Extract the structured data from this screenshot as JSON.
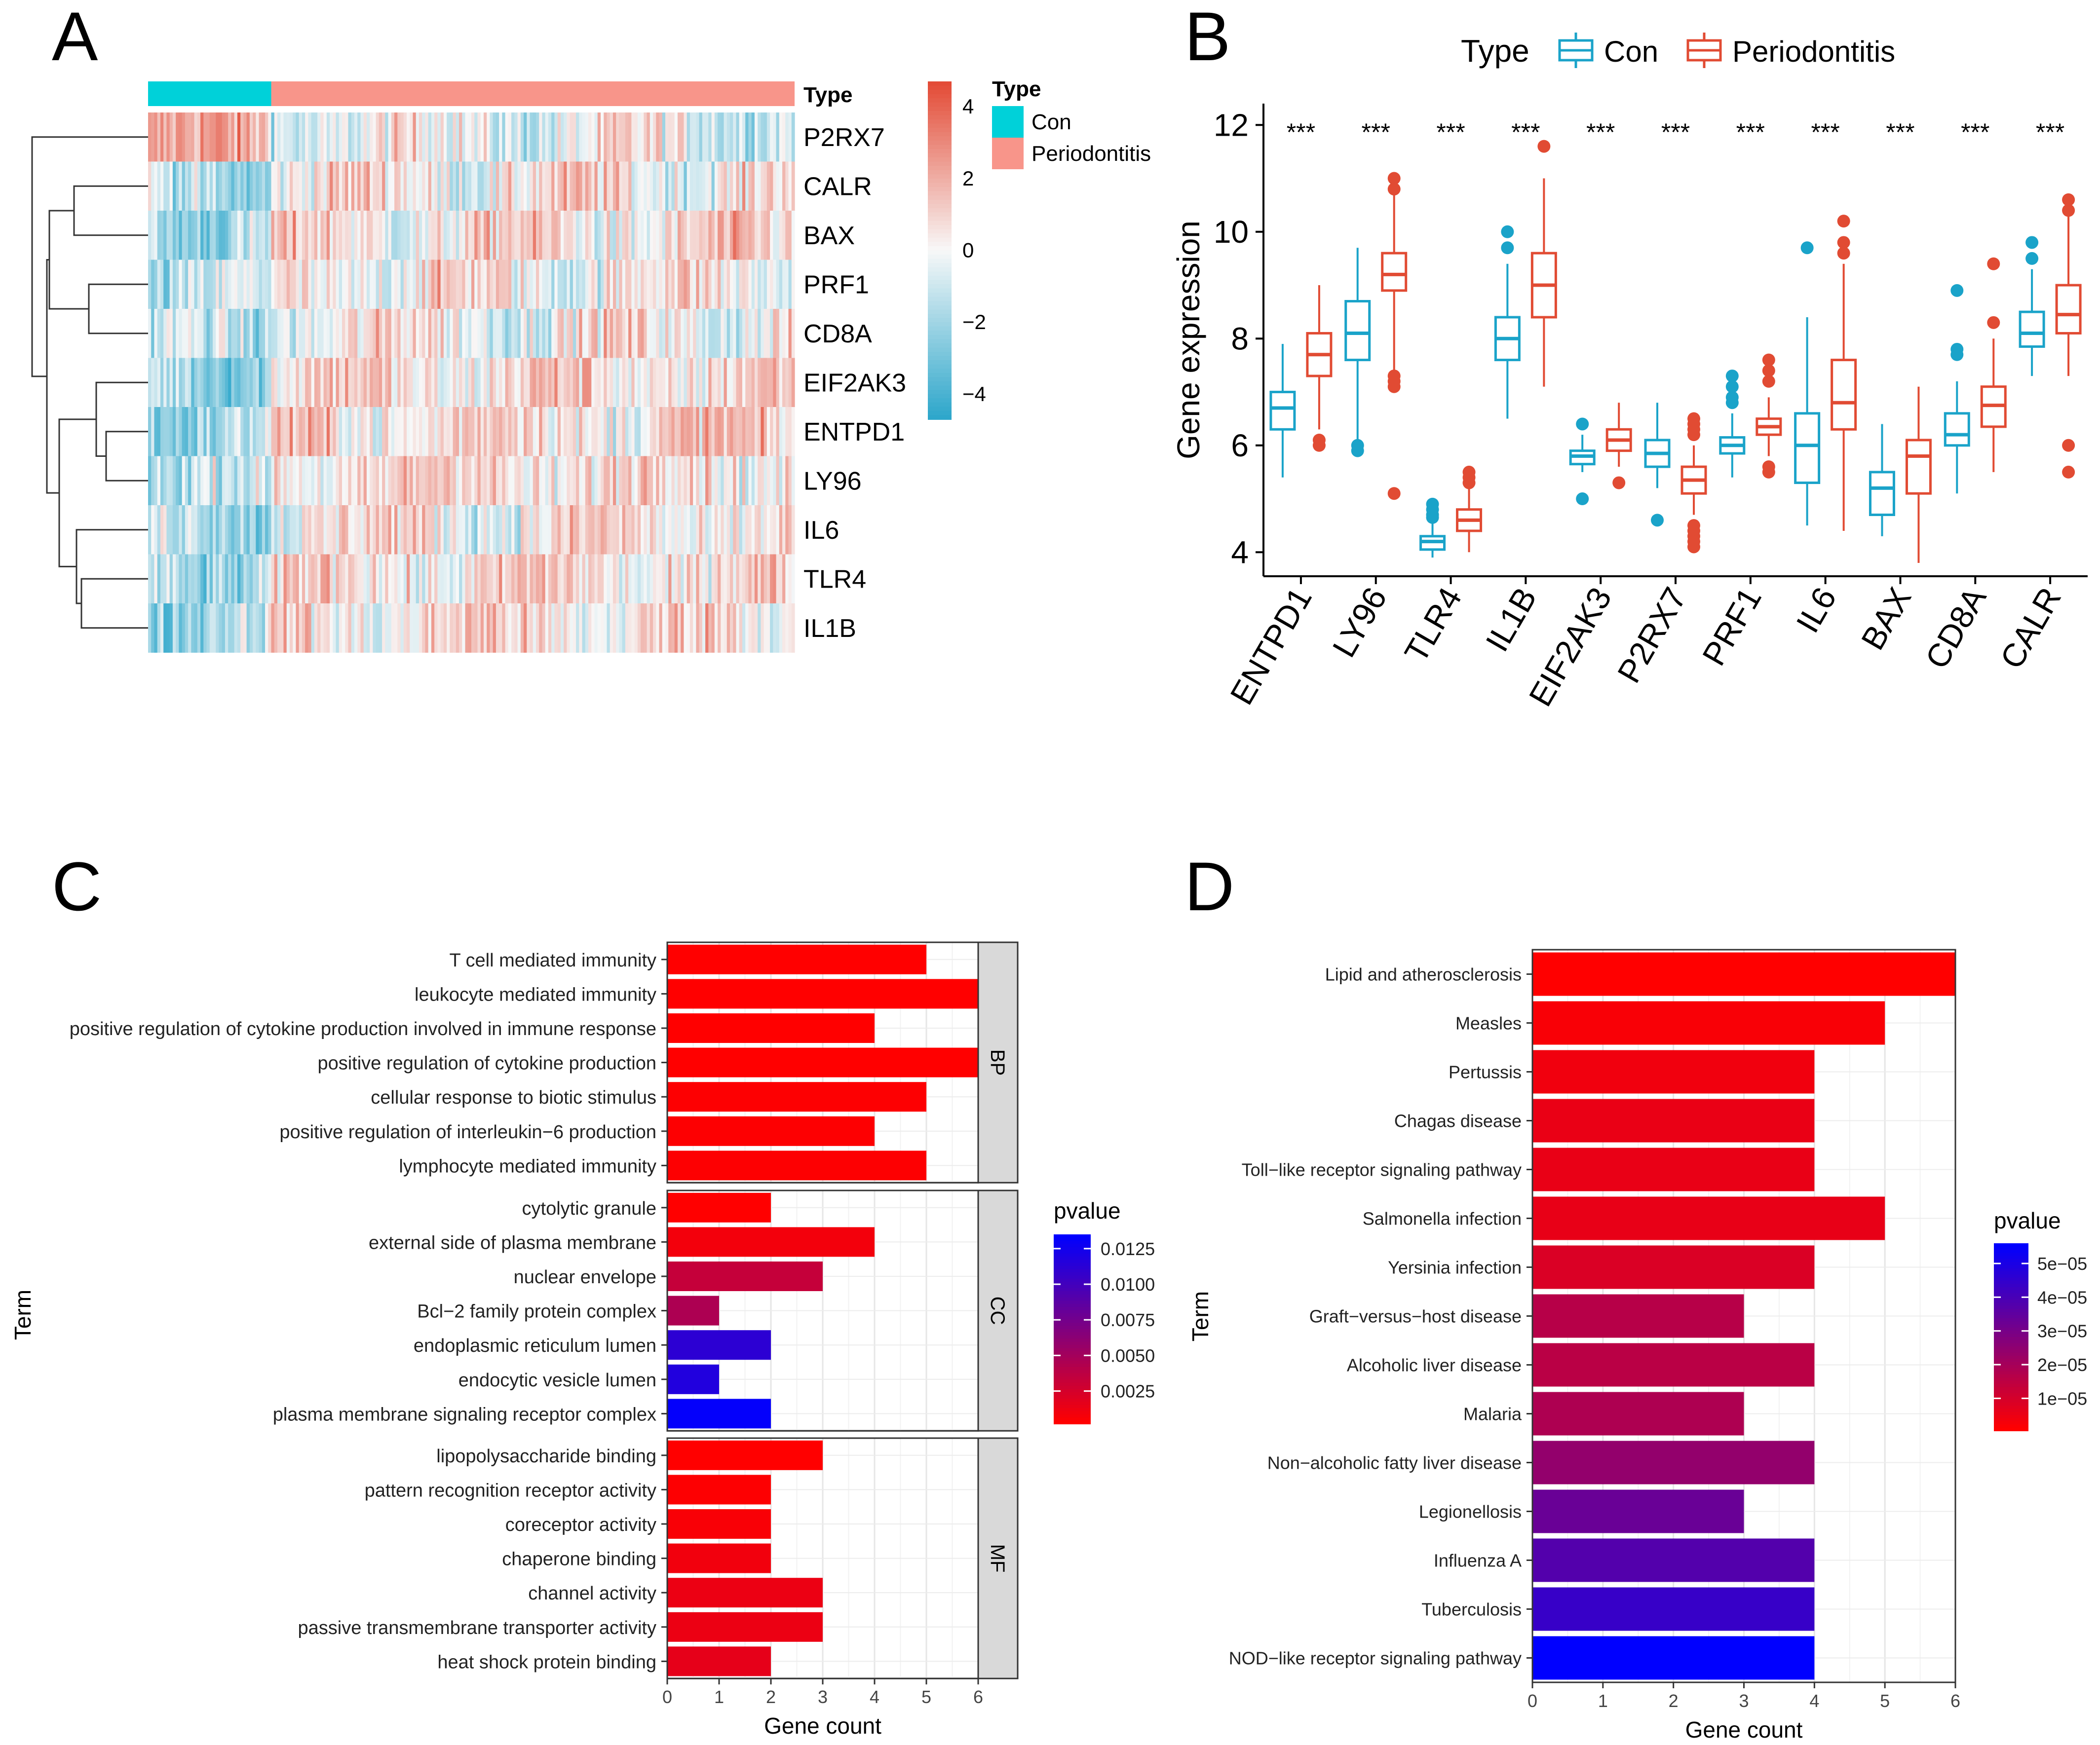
{
  "colors": {
    "con": "#1aa3c9",
    "periodontitis": "#e14b33",
    "con_fill": "#00d1d9",
    "period_fill": "#f8958a",
    "heat_low": "#2ea7cb",
    "heat_mid": "#f8f8f8",
    "heat_high": "#e34b36",
    "bar_low": "#ff0000",
    "bar_high": "#0000ff"
  },
  "panels": {
    "A": "A",
    "B": "B",
    "C": "C",
    "D": "D"
  },
  "chart_data": [
    {
      "id": "A",
      "type": "heatmap",
      "annotation_title": "Type",
      "legend_title": "Type",
      "groups": [
        {
          "name": "Con",
          "count": 40
        },
        {
          "name": "Periodontitis",
          "count": 170
        }
      ],
      "rows": [
        "P2RX7",
        "CALR",
        "BAX",
        "PRF1",
        "CD8A",
        "EIF2AK3",
        "ENTPD1",
        "LY96",
        "IL6",
        "TLR4",
        "IL1B"
      ],
      "color_scale": {
        "ticks": [
          "4",
          "2",
          "0",
          "−2",
          "−4"
        ],
        "values": [
          4,
          2,
          0,
          -2,
          -4
        ],
        "min": -4.7,
        "max": 4.7
      }
    },
    {
      "id": "B",
      "type": "box",
      "legend_title": "Type",
      "legend": [
        "Con",
        "Periodontitis"
      ],
      "ylabel": "Gene expression",
      "ylim": [
        3.55,
        12.4
      ],
      "yticks": [
        4,
        6,
        8,
        10,
        12
      ],
      "significance": "***",
      "genes": [
        {
          "gene": "ENTPD1",
          "con": {
            "q1": 6.3,
            "median": 6.7,
            "q3": 7.0,
            "lo": 5.4,
            "hi": 7.9,
            "outliers": []
          },
          "period": {
            "q1": 7.3,
            "median": 7.7,
            "q3": 8.1,
            "lo": 6.3,
            "hi": 9.0,
            "outliers": [
              6.1,
              6.0
            ]
          }
        },
        {
          "gene": "LY96",
          "con": {
            "q1": 7.6,
            "median": 8.1,
            "q3": 8.7,
            "lo": 6.1,
            "hi": 9.7,
            "outliers": [
              6.0,
              5.9
            ]
          },
          "period": {
            "q1": 8.9,
            "median": 9.2,
            "q3": 9.6,
            "lo": 7.4,
            "hi": 10.7,
            "outliers": [
              11.0,
              10.8,
              7.3,
              7.2,
              7.1,
              5.1
            ]
          }
        },
        {
          "gene": "TLR4",
          "con": {
            "q1": 4.05,
            "median": 4.2,
            "q3": 4.3,
            "lo": 3.9,
            "hi": 4.6,
            "outliers": [
              4.9,
              4.8,
              4.7,
              4.65
            ]
          },
          "period": {
            "q1": 4.4,
            "median": 4.6,
            "q3": 4.8,
            "lo": 4.0,
            "hi": 5.2,
            "outliers": [
              5.5,
              5.4,
              5.3
            ]
          }
        },
        {
          "gene": "IL1B",
          "con": {
            "q1": 7.6,
            "median": 8.0,
            "q3": 8.4,
            "lo": 6.5,
            "hi": 9.4,
            "outliers": [
              10.0,
              9.7
            ]
          },
          "period": {
            "q1": 8.4,
            "median": 9.0,
            "q3": 9.6,
            "lo": 7.1,
            "hi": 11.0,
            "outliers": [
              11.6
            ]
          }
        },
        {
          "gene": "EIF2AK3",
          "con": {
            "q1": 5.65,
            "median": 5.8,
            "q3": 5.9,
            "lo": 5.5,
            "hi": 6.2,
            "outliers": [
              6.4,
              5.0
            ]
          },
          "period": {
            "q1": 5.9,
            "median": 6.1,
            "q3": 6.3,
            "lo": 5.6,
            "hi": 6.8,
            "outliers": [
              5.3
            ]
          }
        },
        {
          "gene": "P2RX7",
          "con": {
            "q1": 5.6,
            "median": 5.85,
            "q3": 6.1,
            "lo": 5.2,
            "hi": 6.8,
            "outliers": [
              4.6
            ]
          },
          "period": {
            "q1": 5.1,
            "median": 5.35,
            "q3": 5.6,
            "lo": 4.7,
            "hi": 6.0,
            "outliers": [
              6.5,
              6.4,
              6.3,
              6.2,
              4.5,
              4.4,
              4.3,
              4.2,
              4.1
            ]
          }
        },
        {
          "gene": "PRF1",
          "con": {
            "q1": 5.85,
            "median": 6.0,
            "q3": 6.15,
            "lo": 5.4,
            "hi": 6.6,
            "outliers": [
              7.3,
              7.1,
              6.9,
              6.8
            ]
          },
          "period": {
            "q1": 6.2,
            "median": 6.35,
            "q3": 6.5,
            "lo": 5.8,
            "hi": 6.9,
            "outliers": [
              7.6,
              7.4,
              7.2,
              5.6,
              5.5
            ]
          }
        },
        {
          "gene": "IL6",
          "con": {
            "q1": 5.3,
            "median": 6.0,
            "q3": 6.6,
            "lo": 4.5,
            "hi": 8.4,
            "outliers": [
              9.7
            ]
          },
          "period": {
            "q1": 6.3,
            "median": 6.8,
            "q3": 7.6,
            "lo": 4.4,
            "hi": 9.4,
            "outliers": [
              10.2,
              9.8,
              9.6
            ]
          }
        },
        {
          "gene": "BAX",
          "con": {
            "q1": 4.7,
            "median": 5.2,
            "q3": 5.5,
            "lo": 4.3,
            "hi": 6.4,
            "outliers": []
          },
          "period": {
            "q1": 5.1,
            "median": 5.8,
            "q3": 6.1,
            "lo": 3.8,
            "hi": 7.1,
            "outliers": []
          }
        },
        {
          "gene": "CD8A",
          "con": {
            "q1": 6.0,
            "median": 6.2,
            "q3": 6.6,
            "lo": 5.1,
            "hi": 7.2,
            "outliers": [
              8.9,
              7.8,
              7.7
            ]
          },
          "period": {
            "q1": 6.35,
            "median": 6.75,
            "q3": 7.1,
            "lo": 5.5,
            "hi": 8.0,
            "outliers": [
              9.4,
              8.3
            ]
          }
        },
        {
          "gene": "CALR",
          "con": {
            "q1": 7.85,
            "median": 8.1,
            "q3": 8.5,
            "lo": 7.3,
            "hi": 9.3,
            "outliers": [
              9.8,
              9.5
            ]
          },
          "period": {
            "q1": 8.1,
            "median": 8.45,
            "q3": 9.0,
            "lo": 7.3,
            "hi": 10.3,
            "outliers": [
              10.6,
              10.4,
              6.0,
              5.5
            ]
          }
        }
      ]
    },
    {
      "id": "C",
      "type": "bar",
      "orientation": "horizontal",
      "xlabel": "Gene count",
      "ylabel": "Term",
      "xlim": [
        0,
        6
      ],
      "xticks": [
        0,
        1,
        2,
        3,
        4,
        5,
        6
      ],
      "legend_title": "pvalue",
      "legend_ticks": [
        "0.0125",
        "0.0100",
        "0.0075",
        "0.0050",
        "0.0025"
      ],
      "legend_values": [
        0.0125,
        0.01,
        0.0075,
        0.005,
        0.0025
      ],
      "pvalue_range": [
        0.0002,
        0.0135
      ],
      "facets": [
        {
          "label": "BP",
          "terms": [
            {
              "term": "T cell mediated immunity",
              "count": 5,
              "pvalue": 0.0002
            },
            {
              "term": "leukocyte mediated immunity",
              "count": 6,
              "pvalue": 0.0002
            },
            {
              "term": "positive regulation of cytokine production involved in immune response",
              "count": 4,
              "pvalue": 0.0002
            },
            {
              "term": "positive regulation of cytokine production",
              "count": 6,
              "pvalue": 0.0002
            },
            {
              "term": "cellular response to biotic stimulus",
              "count": 5,
              "pvalue": 0.0003
            },
            {
              "term": "positive regulation of interleukin−6 production",
              "count": 4,
              "pvalue": 0.0003
            },
            {
              "term": "lymphocyte mediated immunity",
              "count": 5,
              "pvalue": 0.0003
            }
          ]
        },
        {
          "label": "CC",
          "terms": [
            {
              "term": "cytolytic granule",
              "count": 2,
              "pvalue": 0.0002
            },
            {
              "term": "external side of plasma membrane",
              "count": 4,
              "pvalue": 0.0008
            },
            {
              "term": "nuclear envelope",
              "count": 3,
              "pvalue": 0.0032
            },
            {
              "term": "Bcl−2 family protein complex",
              "count": 1,
              "pvalue": 0.0045
            },
            {
              "term": "endoplasmic reticulum lumen",
              "count": 2,
              "pvalue": 0.0112
            },
            {
              "term": "endocytic vesicle lumen",
              "count": 1,
              "pvalue": 0.0118
            },
            {
              "term": "plasma membrane signaling receptor complex",
              "count": 2,
              "pvalue": 0.0133
            }
          ]
        },
        {
          "label": "MF",
          "terms": [
            {
              "term": "lipopolysaccharide binding",
              "count": 3,
              "pvalue": 0.0002
            },
            {
              "term": "pattern recognition receptor activity",
              "count": 2,
              "pvalue": 0.0003
            },
            {
              "term": "coreceptor activity",
              "count": 2,
              "pvalue": 0.0005
            },
            {
              "term": "chaperone binding",
              "count": 2,
              "pvalue": 0.0009
            },
            {
              "term": "channel activity",
              "count": 3,
              "pvalue": 0.0012
            },
            {
              "term": "passive transmembrane transporter activity",
              "count": 3,
              "pvalue": 0.0012
            },
            {
              "term": "heat shock protein binding",
              "count": 2,
              "pvalue": 0.0015
            }
          ]
        }
      ]
    },
    {
      "id": "D",
      "type": "bar",
      "orientation": "horizontal",
      "xlabel": "Gene count",
      "ylabel": "Term",
      "xlim": [
        0,
        6
      ],
      "xticks": [
        0,
        1,
        2,
        3,
        4,
        5,
        6
      ],
      "legend_title": "pvalue",
      "legend_ticks": [
        "5e−05",
        "4e−05",
        "3e−05",
        "2e−05",
        "1e−05"
      ],
      "legend_values": [
        5e-05,
        4e-05,
        3e-05,
        2e-05,
        1e-05
      ],
      "pvalue_range": [
        4e-07,
        5.6e-05
      ],
      "terms": [
        {
          "term": "Lipid and atherosclerosis",
          "count": 6,
          "pvalue": 4e-07
        },
        {
          "term": "Measles",
          "count": 5,
          "pvalue": 1.8e-06
        },
        {
          "term": "Pertussis",
          "count": 4,
          "pvalue": 3.5e-06
        },
        {
          "term": "Chagas disease",
          "count": 4,
          "pvalue": 5e-06
        },
        {
          "term": "Toll−like receptor signaling pathway",
          "count": 4,
          "pvalue": 5.2e-06
        },
        {
          "term": "Salmonella infection",
          "count": 5,
          "pvalue": 5.5e-06
        },
        {
          "term": "Yersinia infection",
          "count": 4,
          "pvalue": 8.5e-06
        },
        {
          "term": "Graft−versus−host disease",
          "count": 3,
          "pvalue": 1.6e-05
        },
        {
          "term": "Alcoholic liver disease",
          "count": 4,
          "pvalue": 1.55e-05
        },
        {
          "term": "Malaria",
          "count": 3,
          "pvalue": 1.8e-05
        },
        {
          "term": "Non−alcoholic fatty liver disease",
          "count": 4,
          "pvalue": 2.4e-05
        },
        {
          "term": "Legionellosis",
          "count": 3,
          "pvalue": 3.3e-05
        },
        {
          "term": "Influenza A",
          "count": 4,
          "pvalue": 3.8e-05
        },
        {
          "term": "Tuberculosis",
          "count": 4,
          "pvalue": 4.4e-05
        },
        {
          "term": "NOD−like receptor signaling pathway",
          "count": 4,
          "pvalue": 5.6e-05
        }
      ]
    }
  ]
}
